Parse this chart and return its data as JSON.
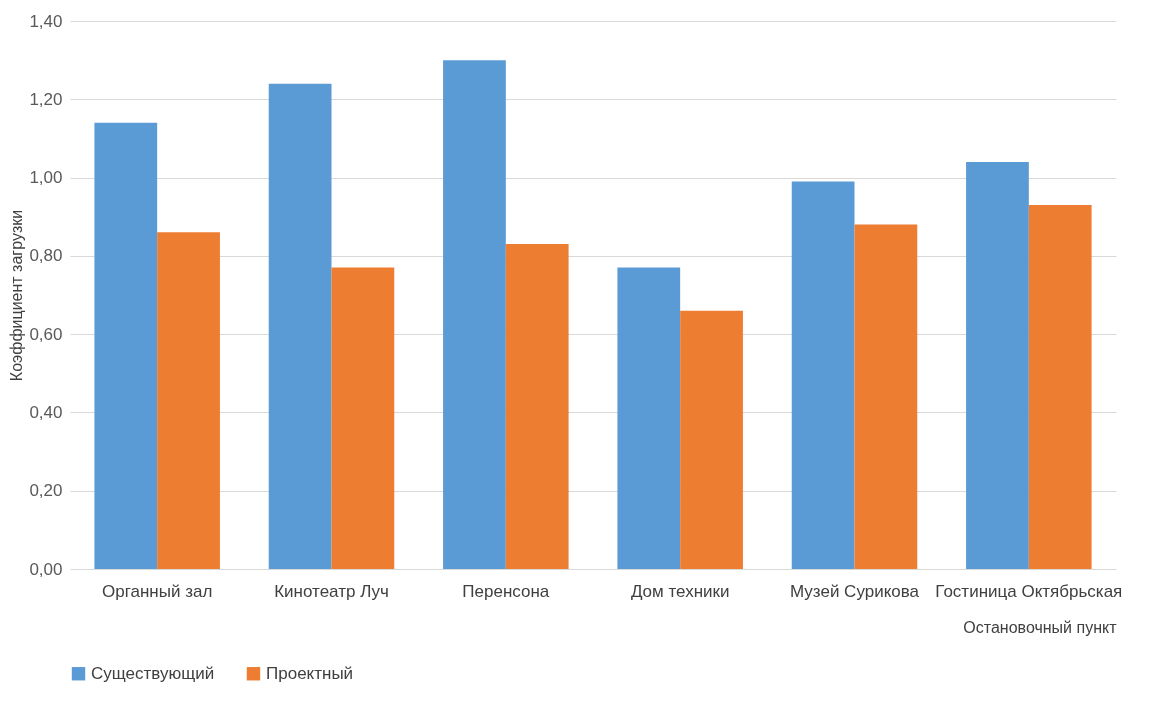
{
  "chart_data": {
    "type": "bar",
    "categories": [
      "Органный зал",
      "Кинотеатр Луч",
      "Перенсона",
      "Дом техники",
      "Музей Сурикова",
      "Гостиница Октябрьская"
    ],
    "series": [
      {
        "name": "Существующий",
        "color": "#5b9bd5",
        "values": [
          1.14,
          1.24,
          1.3,
          0.77,
          0.99,
          1.04
        ]
      },
      {
        "name": "Проектный",
        "color": "#ed7d31",
        "values": [
          0.86,
          0.77,
          0.83,
          0.66,
          0.88,
          0.93
        ]
      }
    ],
    "ylabel": "Коэффициент загрузки",
    "xlabel": "Остановочный пункт",
    "ylim": [
      0,
      1.4
    ],
    "yticks": [
      {
        "value": 0,
        "label": "0,00"
      },
      {
        "value": 0.2,
        "label": "0,20"
      },
      {
        "value": 0.4,
        "label": "0,40"
      },
      {
        "value": 0.6,
        "label": "0,60"
      },
      {
        "value": 0.8,
        "label": "0,80"
      },
      {
        "value": 1.0,
        "label": "1,00"
      },
      {
        "value": 1.2,
        "label": "1,20"
      },
      {
        "value": 1.4,
        "label": "1,40"
      }
    ],
    "grid": "y",
    "legend": "bottom"
  }
}
